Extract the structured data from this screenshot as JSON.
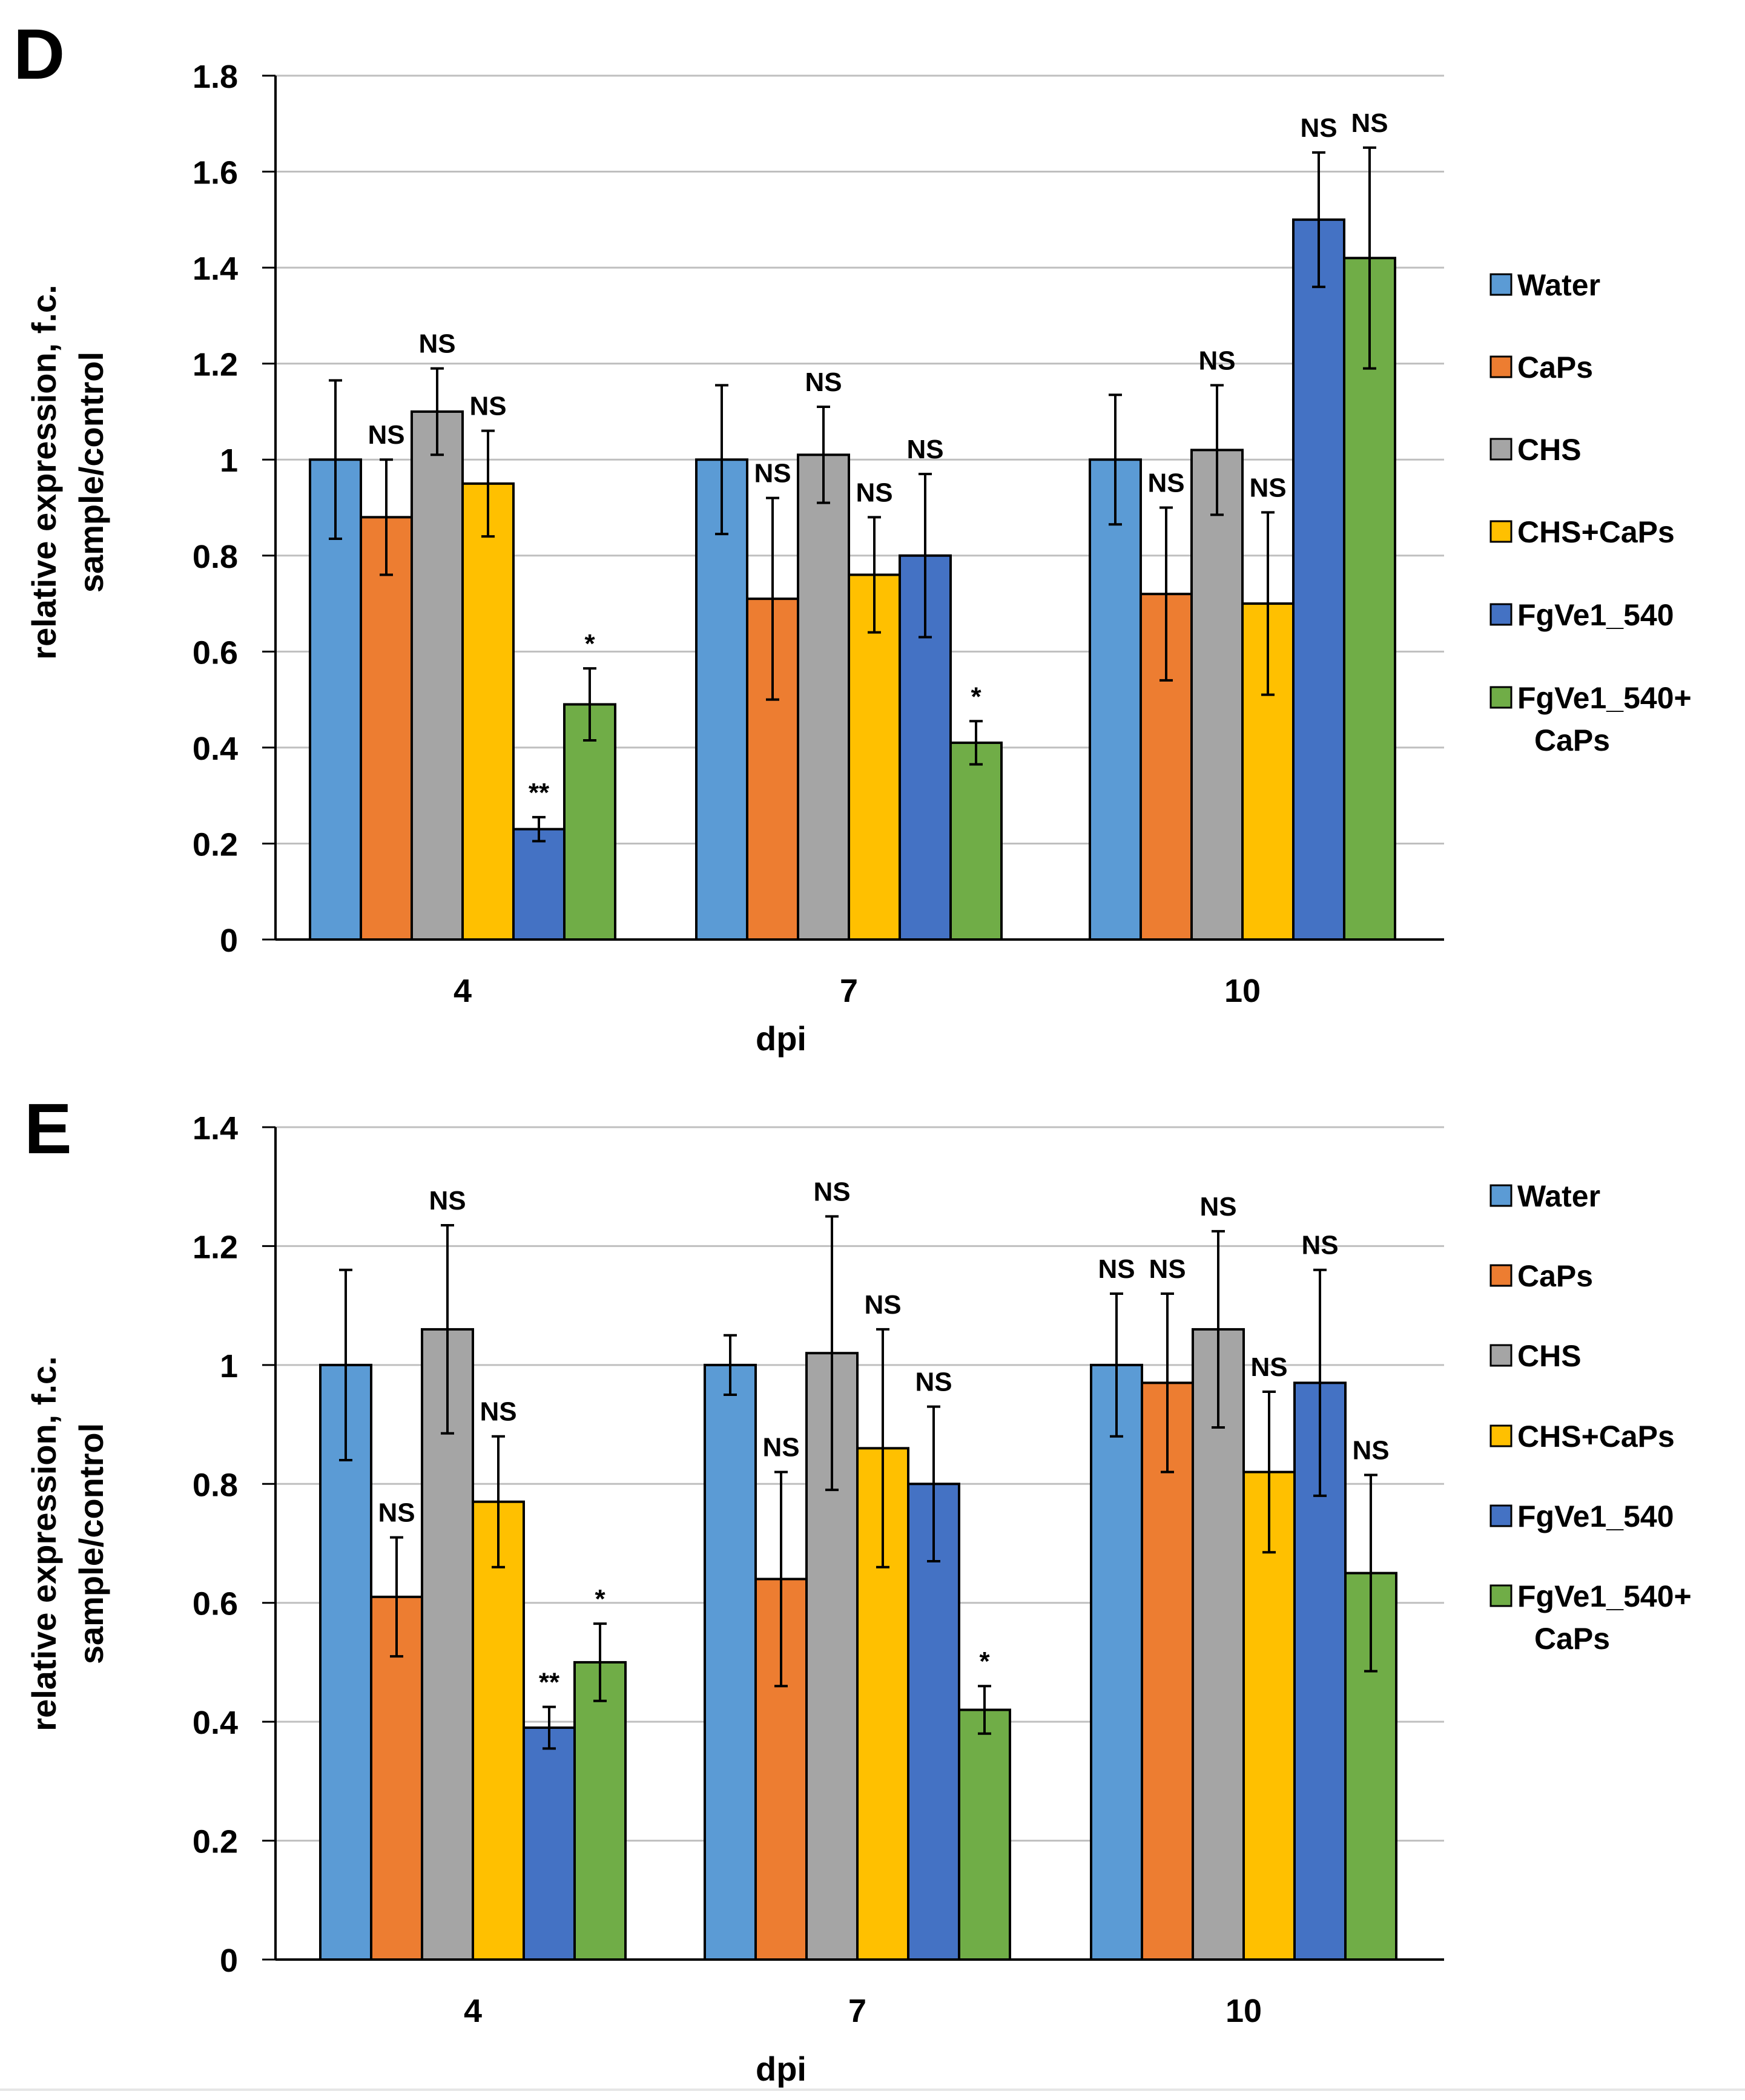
{
  "panels": [
    {
      "label": "D",
      "ylabel_line1": "relative expression, f.c.",
      "ylabel_line2": "sample/control",
      "xlabel": "dpi"
    },
    {
      "label": "E",
      "ylabel_line1": "relative expression, f.c.",
      "ylabel_line2": "sample/control",
      "xlabel": "dpi"
    }
  ],
  "legend": {
    "entries": [
      "Water",
      "CaPs",
      "CHS",
      "CHS+CaPs",
      "FgVe1_540",
      "FgVe1_540+",
      "CaPs"
    ]
  },
  "chart_data": [
    {
      "type": "bar",
      "panel": "D",
      "title": "",
      "xlabel": "dpi",
      "ylabel": "relative expression, f.c. sample/control",
      "categories": [
        "4",
        "7",
        "10"
      ],
      "ylim": [
        0,
        1.8
      ],
      "yticks": [
        0,
        0.2,
        0.4,
        0.6,
        0.8,
        1,
        1.2,
        1.4,
        1.6,
        1.8
      ],
      "ytick_labels": [
        "0",
        "0.2",
        "0.4",
        "0.6",
        "0.8",
        "1",
        "1.2",
        "1.4",
        "1.6",
        "1.8"
      ],
      "grid": true,
      "legend_position": "right",
      "series": [
        {
          "name": "Water",
          "color": "#5B9BD5",
          "values": [
            1.0,
            1.0,
            1.0
          ],
          "errors": [
            0.165,
            0.155,
            0.135
          ],
          "annotations": [
            "",
            "",
            ""
          ]
        },
        {
          "name": "CaPs",
          "color": "#ED7D31",
          "values": [
            0.88,
            0.71,
            0.72
          ],
          "errors": [
            0.12,
            0.21,
            0.18
          ],
          "annotations": [
            "NS",
            "NS",
            "NS"
          ]
        },
        {
          "name": "CHS",
          "color": "#A5A5A5",
          "values": [
            1.1,
            1.01,
            1.02
          ],
          "errors": [
            0.09,
            0.1,
            0.135
          ],
          "annotations": [
            "NS",
            "NS",
            "NS"
          ]
        },
        {
          "name": "CHS+CaPs",
          "color": "#FFC000",
          "values": [
            0.95,
            0.76,
            0.7
          ],
          "errors": [
            0.11,
            0.12,
            0.19
          ],
          "annotations": [
            "NS",
            "NS",
            "NS"
          ]
        },
        {
          "name": "FgVe1_540",
          "color": "#4472C4",
          "values": [
            0.23,
            0.8,
            1.5
          ],
          "errors": [
            0.025,
            0.17,
            0.14
          ],
          "annotations": [
            "**",
            "NS",
            "NS"
          ]
        },
        {
          "name": "FgVe1_540+ CaPs",
          "color": "#70AD47",
          "values": [
            0.49,
            0.41,
            1.42
          ],
          "errors": [
            0.075,
            0.045,
            0.23
          ],
          "annotations": [
            "*",
            "*",
            "NS"
          ]
        }
      ]
    },
    {
      "type": "bar",
      "panel": "E",
      "title": "",
      "xlabel": "dpi",
      "ylabel": "relative expression, f.c. sample/control",
      "categories": [
        "4",
        "7",
        "10"
      ],
      "ylim": [
        0,
        1.4
      ],
      "yticks": [
        0,
        0.2,
        0.4,
        0.6,
        0.8,
        1,
        1.2,
        1.4
      ],
      "ytick_labels": [
        "0",
        "0.2",
        "0.4",
        "0.6",
        "0.8",
        "1",
        "1.2",
        "1.4"
      ],
      "grid": true,
      "legend_position": "right",
      "series": [
        {
          "name": "Water",
          "color": "#5B9BD5",
          "values": [
            1.0,
            1.0,
            1.0
          ],
          "errors": [
            0.16,
            0.05,
            0.12
          ],
          "annotations": [
            "",
            "",
            "NS"
          ]
        },
        {
          "name": "CaPs",
          "color": "#ED7D31",
          "values": [
            0.61,
            0.64,
            0.97
          ],
          "errors": [
            0.1,
            0.18,
            0.15
          ],
          "annotations": [
            "NS",
            "NS",
            "NS"
          ]
        },
        {
          "name": "CHS",
          "color": "#A5A5A5",
          "values": [
            1.06,
            1.02,
            1.06
          ],
          "errors": [
            0.175,
            0.23,
            0.165
          ],
          "annotations": [
            "NS",
            "NS",
            "NS"
          ]
        },
        {
          "name": "CHS+CaPs",
          "color": "#FFC000",
          "values": [
            0.77,
            0.86,
            0.82
          ],
          "errors": [
            0.11,
            0.2,
            0.135
          ],
          "annotations": [
            "NS",
            "NS",
            "NS"
          ]
        },
        {
          "name": "FgVe1_540",
          "color": "#4472C4",
          "values": [
            0.39,
            0.8,
            0.97
          ],
          "errors": [
            0.035,
            0.13,
            0.19
          ],
          "annotations": [
            "**",
            "NS",
            "NS"
          ]
        },
        {
          "name": "FgVe1_540+ CaPs",
          "color": "#70AD47",
          "values": [
            0.5,
            0.42,
            0.65
          ],
          "errors": [
            0.065,
            0.04,
            0.165
          ],
          "annotations": [
            "*",
            "*",
            "NS"
          ]
        }
      ]
    }
  ]
}
